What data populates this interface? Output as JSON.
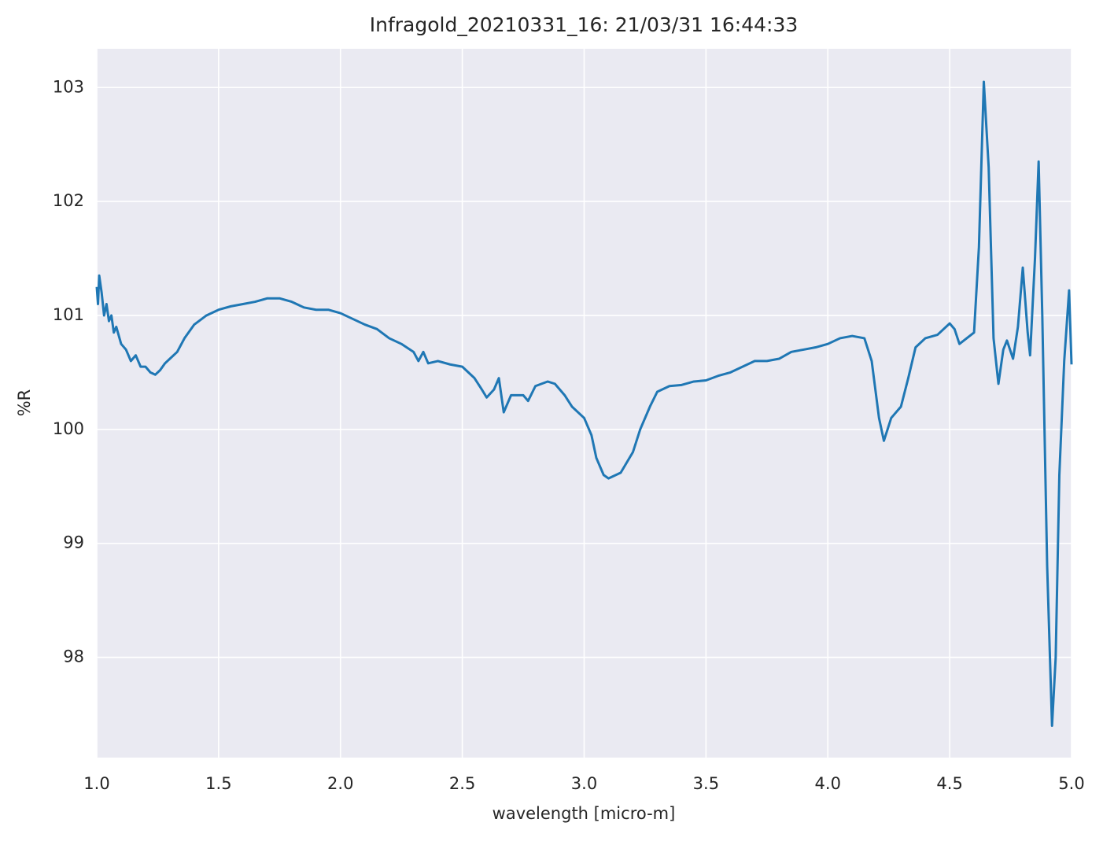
{
  "chart_data": {
    "type": "line",
    "title": "Infragold_20210331_16:  21/03/31 16:44:33",
    "xlabel": "wavelength [micro-m]",
    "ylabel": "%R",
    "x": [
      1.0,
      1.005,
      1.01,
      1.02,
      1.03,
      1.04,
      1.05,
      1.06,
      1.07,
      1.08,
      1.1,
      1.12,
      1.14,
      1.16,
      1.18,
      1.2,
      1.22,
      1.24,
      1.26,
      1.28,
      1.3,
      1.33,
      1.36,
      1.4,
      1.45,
      1.5,
      1.55,
      1.6,
      1.65,
      1.7,
      1.75,
      1.8,
      1.85,
      1.9,
      1.95,
      2.0,
      2.05,
      2.1,
      2.15,
      2.2,
      2.25,
      2.3,
      2.32,
      2.34,
      2.36,
      2.4,
      2.45,
      2.5,
      2.55,
      2.58,
      2.6,
      2.63,
      2.65,
      2.67,
      2.7,
      2.73,
      2.75,
      2.77,
      2.8,
      2.85,
      2.88,
      2.92,
      2.95,
      3.0,
      3.03,
      3.05,
      3.08,
      3.1,
      3.15,
      3.2,
      3.23,
      3.27,
      3.3,
      3.35,
      3.4,
      3.45,
      3.5,
      3.55,
      3.6,
      3.65,
      3.7,
      3.75,
      3.8,
      3.85,
      3.9,
      3.95,
      4.0,
      4.05,
      4.1,
      4.15,
      4.18,
      4.21,
      4.23,
      4.26,
      4.3,
      4.33,
      4.36,
      4.4,
      4.45,
      4.5,
      4.52,
      4.54,
      4.57,
      4.6,
      4.62,
      4.64,
      4.66,
      4.68,
      4.7,
      4.72,
      4.735,
      4.76,
      4.78,
      4.8,
      4.82,
      4.83,
      4.85,
      4.865,
      4.88,
      4.9,
      4.92,
      4.935,
      4.95,
      4.97,
      4.99,
      5.0
    ],
    "series": [
      {
        "color": "#1f77b4",
        "values": [
          101.25,
          101.1,
          101.35,
          101.2,
          101.0,
          101.1,
          100.95,
          101.0,
          100.85,
          100.9,
          100.75,
          100.7,
          100.6,
          100.65,
          100.55,
          100.55,
          100.5,
          100.48,
          100.52,
          100.58,
          100.62,
          100.68,
          100.8,
          100.92,
          101.0,
          101.05,
          101.08,
          101.1,
          101.12,
          101.15,
          101.15,
          101.12,
          101.07,
          101.05,
          101.05,
          101.02,
          100.97,
          100.92,
          100.88,
          100.8,
          100.75,
          100.68,
          100.6,
          100.68,
          100.58,
          100.6,
          100.57,
          100.55,
          100.45,
          100.35,
          100.28,
          100.35,
          100.45,
          100.15,
          100.3,
          100.3,
          100.3,
          100.25,
          100.38,
          100.42,
          100.4,
          100.3,
          100.2,
          100.1,
          99.95,
          99.75,
          99.6,
          99.57,
          99.62,
          99.8,
          100.0,
          100.2,
          100.33,
          100.38,
          100.39,
          100.42,
          100.43,
          100.47,
          100.5,
          100.55,
          100.6,
          100.6,
          100.62,
          100.68,
          100.7,
          100.72,
          100.75,
          100.8,
          100.82,
          100.8,
          100.6,
          100.1,
          99.9,
          100.1,
          100.2,
          100.45,
          100.72,
          100.8,
          100.83,
          100.93,
          100.88,
          100.75,
          100.8,
          100.85,
          101.6,
          103.05,
          102.3,
          100.8,
          100.4,
          100.7,
          100.78,
          100.62,
          100.9,
          101.42,
          100.85,
          100.65,
          101.5,
          102.35,
          101.0,
          98.8,
          97.4,
          98.0,
          99.6,
          100.6,
          101.22,
          100.57
        ]
      }
    ],
    "xlim": [
      1.0,
      5.0
    ],
    "ylim": [
      97.12,
      103.34
    ],
    "xticks": [
      {
        "value": 1.0,
        "label": "1.0"
      },
      1.5,
      {
        "value": 2.0,
        "label": "2.0"
      },
      2.5,
      {
        "value": 3.0,
        "label": "3.0"
      },
      3.5,
      {
        "value": 4.0,
        "label": "4.0"
      },
      4.5,
      {
        "value": 5.0,
        "label": "5.0"
      }
    ],
    "yticks": [
      98,
      99,
      100,
      101,
      102,
      103
    ],
    "grid": true,
    "background": "#eaeaf2"
  }
}
